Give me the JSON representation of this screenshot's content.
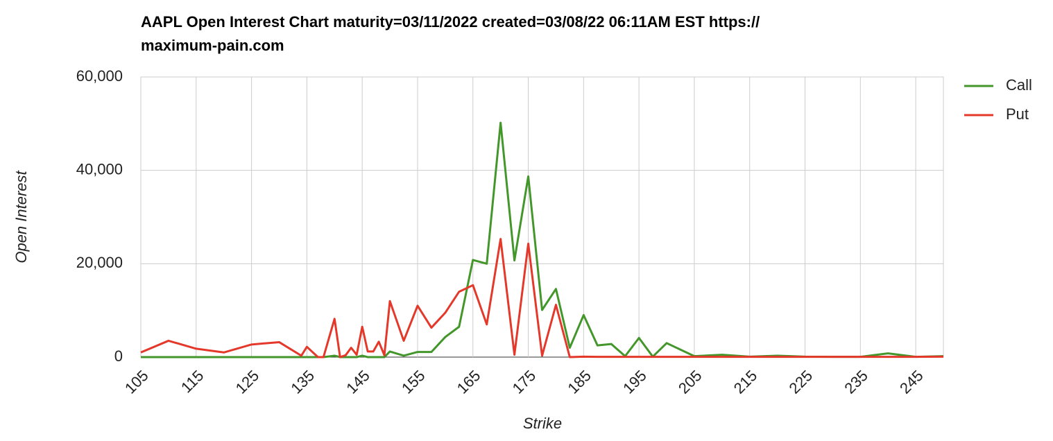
{
  "chart_data": {
    "type": "line",
    "title": "AAPL Open Interest Chart maturity=03/11/2022 created=03/08/22 06:11AM EST https://",
    "subtitle": "maximum-pain.com",
    "x_label": "Strike",
    "y_label": "Open Interest",
    "x": [
      105,
      110,
      115,
      120,
      125,
      130,
      134,
      135,
      137,
      138,
      140,
      141,
      142,
      143,
      144,
      145,
      146,
      147,
      148,
      149,
      150,
      152.5,
      155,
      157.5,
      160,
      162.5,
      165,
      167.5,
      170,
      172.5,
      175,
      177.5,
      180,
      182.5,
      185,
      187.5,
      190,
      192.5,
      195,
      197.5,
      200,
      205,
      210,
      215,
      220,
      225,
      230,
      235,
      240,
      245,
      250
    ],
    "series": [
      {
        "name": "Call",
        "color": "#43962a",
        "values": [
          0,
          0,
          0,
          0,
          0,
          0,
          0,
          0,
          0,
          0,
          300,
          0,
          0,
          0,
          0,
          300,
          0,
          0,
          0,
          0,
          1200,
          300,
          1100,
          1100,
          4300,
          6500,
          20800,
          20000,
          50200,
          20700,
          38700,
          10100,
          14600,
          2000,
          9000,
          2500,
          2800,
          200,
          4100,
          100,
          3000,
          200,
          500,
          100,
          300,
          100,
          50,
          50,
          800,
          50,
          200
        ]
      },
      {
        "name": "Put",
        "color": "#e3382a",
        "values": [
          1000,
          3500,
          1800,
          1000,
          2700,
          3200,
          300,
          2200,
          0,
          0,
          8200,
          0,
          400,
          2000,
          500,
          6500,
          1200,
          1200,
          3300,
          400,
          12000,
          3500,
          11000,
          6300,
          9500,
          14000,
          15400,
          7000,
          25300,
          500,
          24300,
          300,
          11200,
          0,
          100,
          50,
          50,
          50,
          50,
          50,
          50,
          50,
          50,
          50,
          50,
          50,
          50,
          50,
          50,
          50,
          100
        ]
      }
    ],
    "xlim": [
      105,
      250
    ],
    "xticks": [
      105,
      115,
      125,
      135,
      145,
      155,
      165,
      175,
      185,
      195,
      205,
      215,
      225,
      235,
      245
    ],
    "ylim": [
      0,
      60000
    ],
    "yticks": [
      0,
      {
        "value": 20000,
        "label": "20,000"
      },
      {
        "value": 40000,
        "label": "40,000"
      },
      {
        "value": 60000,
        "label": "60,000"
      }
    ],
    "grid": true,
    "legend": "right"
  }
}
